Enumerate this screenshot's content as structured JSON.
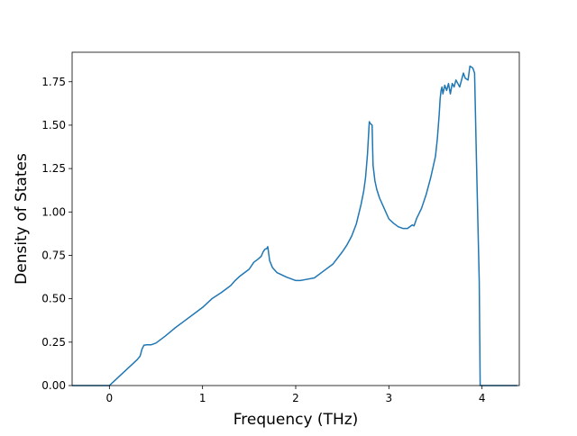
{
  "chart_data": {
    "type": "line",
    "title": "",
    "xlabel": "Frequency (THz)",
    "ylabel": "Density of States",
    "xlim": [
      -0.4,
      4.4
    ],
    "ylim": [
      0,
      1.92
    ],
    "xticks": [
      0,
      1,
      2,
      3,
      4
    ],
    "yticks": [
      0.0,
      0.25,
      0.5,
      0.75,
      1.0,
      1.25,
      1.5,
      1.75
    ],
    "xtick_labels": [
      "0",
      "1",
      "2",
      "3",
      "4"
    ],
    "ytick_labels": [
      "0.00",
      "0.25",
      "0.50",
      "0.75",
      "1.00",
      "1.25",
      "1.50",
      "1.75"
    ],
    "grid": false,
    "legend": "none",
    "series": [
      {
        "color": "#1f77b4",
        "x": [
          -0.4,
          -0.2,
          -0.05,
          0.0,
          0.05,
          0.1,
          0.15,
          0.2,
          0.25,
          0.3,
          0.33,
          0.35,
          0.37,
          0.4,
          0.45,
          0.5,
          0.55,
          0.6,
          0.7,
          0.8,
          0.9,
          1.0,
          1.1,
          1.2,
          1.3,
          1.35,
          1.4,
          1.45,
          1.5,
          1.55,
          1.6,
          1.63,
          1.65,
          1.67,
          1.69,
          1.7,
          1.72,
          1.75,
          1.8,
          1.9,
          2.0,
          2.05,
          2.1,
          2.2,
          2.3,
          2.4,
          2.5,
          2.55,
          2.6,
          2.65,
          2.7,
          2.73,
          2.75,
          2.77,
          2.79,
          2.8,
          2.82,
          2.83,
          2.85,
          2.87,
          2.9,
          2.95,
          3.0,
          3.05,
          3.1,
          3.15,
          3.2,
          3.25,
          3.27,
          3.3,
          3.35,
          3.4,
          3.45,
          3.5,
          3.52,
          3.54,
          3.55,
          3.56,
          3.57,
          3.58,
          3.6,
          3.62,
          3.64,
          3.66,
          3.68,
          3.7,
          3.72,
          3.74,
          3.76,
          3.8,
          3.82,
          3.85,
          3.87,
          3.9,
          3.92,
          3.94,
          3.97,
          3.98,
          3.99,
          4.0,
          4.1,
          4.38
        ],
        "y": [
          0.0,
          0.0,
          0.0,
          0.0,
          0.025,
          0.05,
          0.075,
          0.1,
          0.125,
          0.15,
          0.17,
          0.21,
          0.232,
          0.235,
          0.235,
          0.245,
          0.265,
          0.285,
          0.33,
          0.37,
          0.41,
          0.45,
          0.5,
          0.535,
          0.575,
          0.605,
          0.63,
          0.65,
          0.67,
          0.71,
          0.73,
          0.745,
          0.77,
          0.785,
          0.79,
          0.8,
          0.72,
          0.68,
          0.65,
          0.625,
          0.605,
          0.605,
          0.61,
          0.62,
          0.66,
          0.7,
          0.77,
          0.81,
          0.86,
          0.93,
          1.04,
          1.12,
          1.2,
          1.33,
          1.52,
          1.51,
          1.5,
          1.27,
          1.18,
          1.13,
          1.08,
          1.02,
          0.96,
          0.935,
          0.915,
          0.905,
          0.905,
          0.925,
          0.92,
          0.965,
          1.02,
          1.1,
          1.2,
          1.32,
          1.42,
          1.56,
          1.65,
          1.7,
          1.72,
          1.68,
          1.73,
          1.7,
          1.74,
          1.68,
          1.74,
          1.72,
          1.76,
          1.74,
          1.72,
          1.8,
          1.77,
          1.76,
          1.84,
          1.83,
          1.8,
          1.3,
          0.6,
          0.0,
          0.0,
          0.0,
          0.0,
          0.0
        ]
      }
    ]
  }
}
